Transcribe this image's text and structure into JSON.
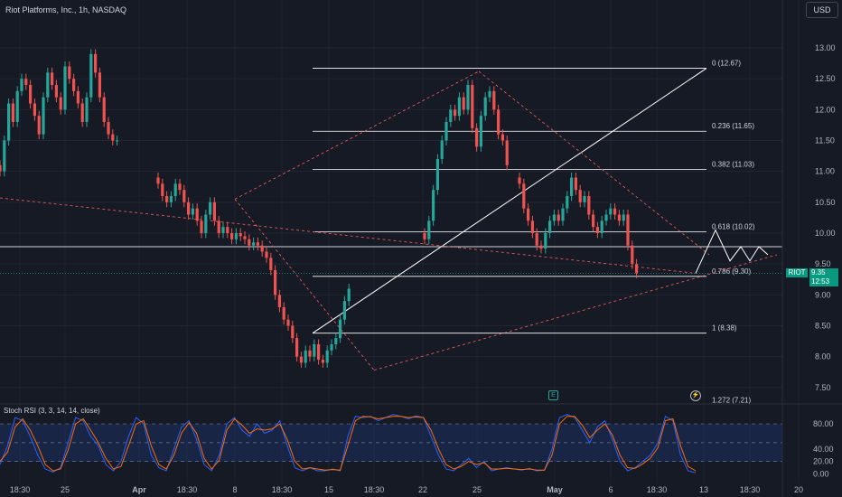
{
  "header": {
    "title": "Riot Platforms, Inc., 1h, NASDAQ"
  },
  "currency": "USD",
  "oscillator": {
    "label": "Stoch RSI (3, 3, 14, 14, close)",
    "levels": [
      80,
      20
    ]
  },
  "price_tag": {
    "symbol": "RIOT",
    "price": "9.35",
    "countdown": "12:53",
    "color": "#089981"
  },
  "events": {
    "earnings_icon": "E",
    "dividend_icon": "⚡"
  },
  "colors": {
    "up": "#26a69a",
    "down": "#ef5350",
    "stoch_k": "#2962ff",
    "stoch_d": "#ff6d00",
    "fib": "#ffffff",
    "dashed": "#e15a5a"
  },
  "chart_data": [
    {
      "type": "candlestick",
      "title": "Riot Platforms, Inc., 1h, NASDAQ",
      "x_tick_labels": [
        "18:30",
        "25",
        "Apr",
        "18:30",
        "8",
        "18:30",
        "15",
        "18:30",
        "22",
        "25",
        "May",
        "6",
        "18:30",
        "13",
        "18:30",
        "20"
      ],
      "y_ticks": [
        13.0,
        12.5,
        12.0,
        11.5,
        11.0,
        10.5,
        10.0,
        9.5,
        9.0,
        8.5,
        8.0,
        7.5
      ],
      "ylim": [
        7.25,
        13.6
      ],
      "last_price": 9.35,
      "fib_levels": [
        {
          "ratio": "0",
          "price": 12.67,
          "label": "0 (12.67)"
        },
        {
          "ratio": "0.236",
          "price": 11.65,
          "label": "0.236 (11.65)"
        },
        {
          "ratio": "0.382",
          "price": 11.03,
          "label": "0.382 (11.03)"
        },
        {
          "ratio": "0.618",
          "price": 10.02,
          "label": "0.618 (10.02)"
        },
        {
          "ratio": "0.786",
          "price": 9.3,
          "label": "0.786 (9.30)"
        },
        {
          "ratio": "1",
          "price": 8.38,
          "label": "1 (8.38)"
        },
        {
          "ratio": "1.272",
          "price": 7.21,
          "label": "1.272 (7.21)"
        }
      ],
      "horizontal_line": 9.78,
      "series": [
        {
          "segment": "late-march",
          "closes": [
            11.0,
            11.5,
            12.1,
            11.8,
            12.3,
            12.5,
            12.4,
            12.1,
            11.9,
            11.6,
            12.2,
            12.6,
            12.4,
            12.2,
            12.0,
            12.7,
            12.5,
            12.3,
            12.1,
            11.8,
            12.2,
            12.9,
            12.6,
            12.2,
            11.8,
            11.6,
            11.5,
            11.5
          ]
        },
        {
          "segment": "april-decline",
          "closes": [
            10.8,
            10.6,
            10.5,
            10.6,
            10.8,
            10.7,
            10.5,
            10.3,
            10.4,
            10.2,
            10.0,
            10.3,
            10.5,
            10.2,
            10.0,
            10.1,
            10.0,
            9.9,
            10.0,
            9.95,
            9.9,
            9.8,
            9.85,
            9.8,
            9.7,
            9.6,
            9.4,
            9.0,
            8.8,
            8.6,
            8.5,
            8.3,
            8.0,
            7.9,
            8.1,
            8.0,
            8.2,
            7.95,
            7.9,
            8.1,
            8.2,
            8.3,
            8.6,
            8.9,
            9.1
          ]
        },
        {
          "segment": "late-april-rally",
          "closes": [
            9.9,
            10.2,
            10.7,
            11.2,
            11.5,
            11.8,
            12.0,
            11.9,
            12.2,
            12.0,
            12.4,
            11.7,
            11.4,
            11.9,
            12.2,
            12.3,
            12.0,
            11.6,
            11.5,
            11.1
          ]
        },
        {
          "segment": "may",
          "closes": [
            10.8,
            10.4,
            10.2,
            10.0,
            9.8,
            9.75,
            10.0,
            10.2,
            10.3,
            10.2,
            10.4,
            10.6,
            10.9,
            10.7,
            10.5,
            10.6,
            10.3,
            10.1,
            10.0,
            10.2,
            10.3,
            10.4,
            10.3,
            10.2,
            10.3,
            9.8,
            9.5,
            9.35
          ]
        }
      ],
      "projection": [
        9.35,
        10.05,
        9.55,
        9.78,
        9.55,
        9.78,
        9.65
      ]
    },
    {
      "type": "line",
      "title": "Stoch RSI (3, 3, 14, 14, close)",
      "y_ticks": [
        80.0,
        40.0,
        20.0,
        0.0
      ],
      "ylim": [
        0,
        100
      ],
      "band": [
        20,
        80
      ],
      "series": [
        {
          "name": "K",
          "values": [
            15,
            45,
            90,
            85,
            60,
            30,
            8,
            3,
            10,
            50,
            90,
            85,
            60,
            45,
            15,
            5,
            20,
            60,
            90,
            80,
            30,
            10,
            5,
            40,
            75,
            85,
            55,
            15,
            5,
            30,
            80,
            90,
            70,
            60,
            80,
            65,
            70,
            85,
            45,
            10,
            5,
            10,
            5,
            5,
            8,
            5,
            60,
            92,
            90,
            92,
            85,
            90,
            95,
            92,
            88,
            93,
            90,
            60,
            30,
            8,
            5,
            15,
            25,
            10,
            20,
            5,
            8,
            10,
            8,
            6,
            9,
            5,
            6,
            40,
            90,
            95,
            90,
            70,
            50,
            75,
            85,
            55,
            20,
            5,
            10,
            20,
            30,
            50,
            92,
            85,
            30,
            5,
            2
          ]
        },
        {
          "name": "D",
          "values": [
            20,
            35,
            75,
            88,
            70,
            45,
            15,
            5,
            8,
            38,
            80,
            88,
            70,
            50,
            25,
            8,
            12,
            45,
            80,
            85,
            45,
            15,
            8,
            30,
            65,
            82,
            65,
            25,
            8,
            22,
            70,
            88,
            78,
            65,
            72,
            70,
            72,
            80,
            55,
            20,
            8,
            10,
            8,
            6,
            7,
            6,
            45,
            85,
            92,
            91,
            88,
            90,
            92,
            92,
            90,
            91,
            90,
            70,
            40,
            15,
            8,
            12,
            20,
            15,
            18,
            8,
            8,
            9,
            8,
            7,
            8,
            6,
            6,
            30,
            80,
            92,
            92,
            78,
            58,
            70,
            80,
            62,
            30,
            10,
            9,
            16,
            25,
            42,
            85,
            88,
            45,
            12,
            5
          ]
        }
      ]
    }
  ]
}
